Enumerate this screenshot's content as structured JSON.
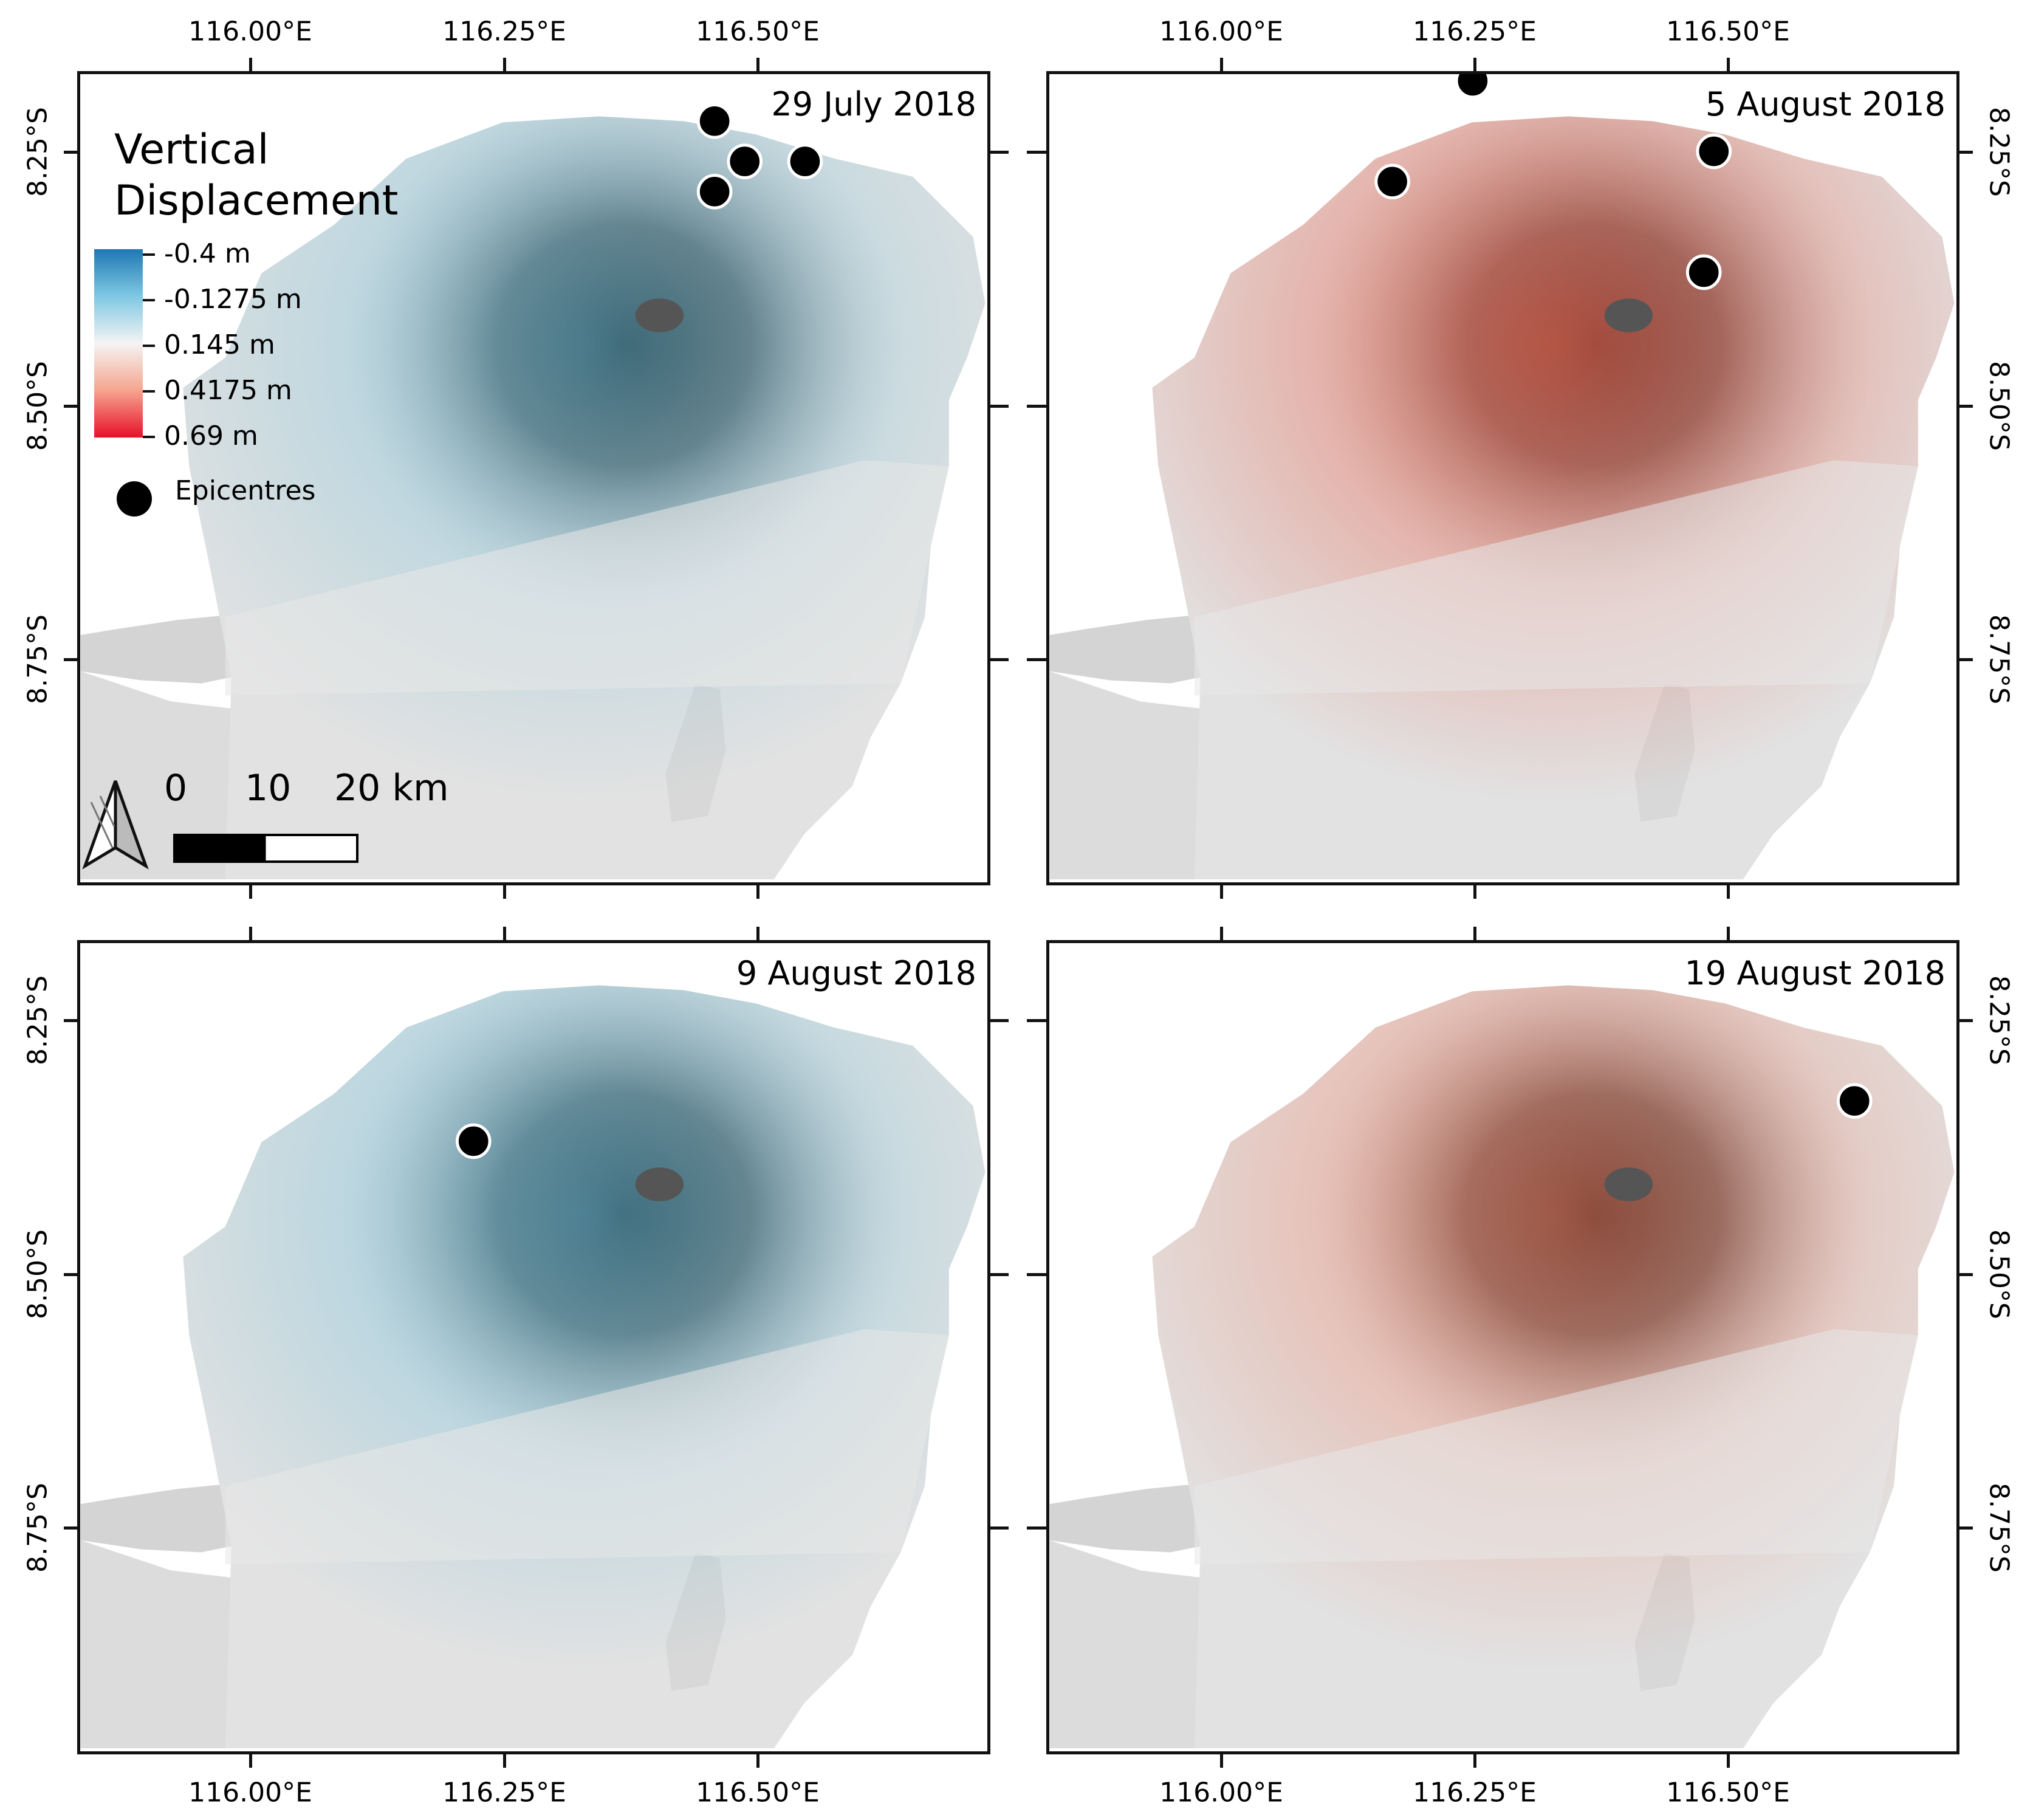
{
  "legend": {
    "title_line1": "Vertical",
    "title_line2": "Displacement",
    "colorbar_labels": [
      "-0.4 m",
      "-0.1275 m",
      "0.145 m",
      "0.4175 m",
      "0.69 m"
    ],
    "colorbar_colors": [
      "#1f78b4",
      "#7ec8e3",
      "#f4f4f4",
      "#f5a58e",
      "#e8102a"
    ],
    "epicentre_label": "Epicentres"
  },
  "scale_bar": {
    "labels": [
      "0",
      "10",
      "20 km"
    ]
  },
  "x_ticks": [
    "116.00°E",
    "116.25°E",
    "116.50°E"
  ],
  "y_ticks": [
    "8.25°S",
    "8.50°S",
    "8.75°S"
  ],
  "panels": [
    {
      "date": "29 July 2018",
      "tint": "#5ab8d8",
      "tint_strength": 0.5,
      "epicentres": [
        [
          116.46,
          8.22
        ],
        [
          116.49,
          8.26
        ],
        [
          116.55,
          8.26
        ],
        [
          116.46,
          8.29
        ]
      ]
    },
    {
      "date": "5 August 2018",
      "tint": "#e8604a",
      "tint_strength": 0.7,
      "epicentres": [
        [
          116.25,
          8.18
        ],
        [
          116.17,
          8.28
        ],
        [
          116.49,
          8.25
        ],
        [
          116.48,
          8.37
        ]
      ]
    },
    {
      "date": "9 August 2018",
      "tint": "#5ab8d8",
      "tint_strength": 0.55,
      "epicentres": [
        [
          116.22,
          8.37
        ]
      ]
    },
    {
      "date": "19 August 2018",
      "tint": "#f07050",
      "tint_strength": 0.55,
      "epicentres": [
        [
          116.63,
          8.33
        ]
      ]
    }
  ]
}
